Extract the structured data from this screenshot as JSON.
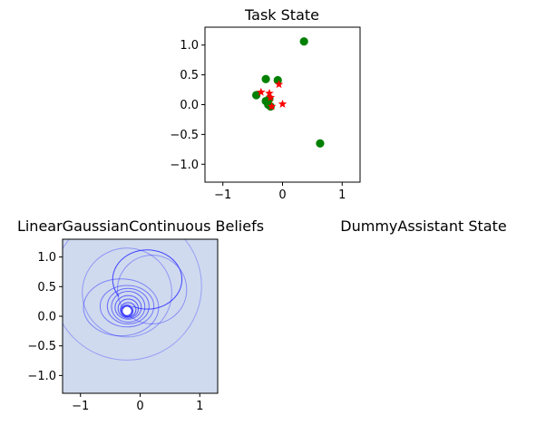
{
  "chart_data": [
    {
      "type": "scatter",
      "title": "Task State",
      "xlim": [
        -1.3,
        1.3
      ],
      "ylim": [
        -1.3,
        1.3
      ],
      "xticks": [
        -1,
        0,
        1
      ],
      "xtick_labels": [
        "−1",
        "0",
        "1"
      ],
      "yticks": [
        1.0,
        0.5,
        0.0,
        -0.5,
        -1.0
      ],
      "ytick_labels": [
        "1.0",
        "0.5",
        "0.0",
        "−0.5",
        "−1.0"
      ],
      "grid": false,
      "series": [
        {
          "marker": "circle",
          "color": "#008000",
          "points": [
            {
              "x": 0.36,
              "y": 1.06
            },
            {
              "x": -0.28,
              "y": 0.43
            },
            {
              "x": -0.08,
              "y": 0.41
            },
            {
              "x": -0.44,
              "y": 0.16
            },
            {
              "x": -0.28,
              "y": 0.06
            },
            {
              "x": -0.22,
              "y": 0.1
            },
            {
              "x": -0.24,
              "y": 0.0
            },
            {
              "x": -0.2,
              "y": -0.03
            },
            {
              "x": 0.63,
              "y": -0.65
            }
          ]
        },
        {
          "marker": "star",
          "color": "#ff0000",
          "points": [
            {
              "x": -0.36,
              "y": 0.21
            },
            {
              "x": -0.22,
              "y": 0.19
            },
            {
              "x": -0.06,
              "y": 0.34
            },
            {
              "x": -0.2,
              "y": 0.12
            },
            {
              "x": -0.18,
              "y": -0.03
            },
            {
              "x": 0.0,
              "y": 0.01
            }
          ]
        }
      ]
    },
    {
      "type": "scatter",
      "title": "LinearGaussianContinuous Beliefs",
      "xlim": [
        -1.3,
        1.3
      ],
      "ylim": [
        -1.3,
        1.3
      ],
      "xticks": [
        -1,
        0,
        1
      ],
      "xtick_labels": [
        "−1",
        "0",
        "1"
      ],
      "yticks": [
        1.0,
        0.5,
        0.0,
        -0.5,
        -1.0
      ],
      "ytick_labels": [
        "1.0",
        "0.5",
        "0.0",
        "−0.5",
        "−1.0"
      ],
      "background": "#cfdaee",
      "ellipse_color": "#3333ff",
      "ellipses": [
        {
          "cx": -0.22,
          "cy": 0.51,
          "rx": 1.25,
          "ry": 1.25
        },
        {
          "cx": -0.22,
          "cy": 0.4,
          "rx": 0.75,
          "ry": 0.75
        },
        {
          "cx": 0.2,
          "cy": 0.45,
          "rx": 0.58,
          "ry": 0.58
        },
        {
          "cx": -0.32,
          "cy": 0.15,
          "rx": 0.63,
          "ry": 0.48
        },
        {
          "cx": -0.22,
          "cy": 0.17,
          "rx": 0.45,
          "ry": 0.35
        },
        {
          "cx": -0.2,
          "cy": 0.17,
          "rx": 0.35,
          "ry": 0.3
        },
        {
          "cx": -0.2,
          "cy": 0.16,
          "rx": 0.28,
          "ry": 0.26
        },
        {
          "cx": -0.2,
          "cy": 0.15,
          "rx": 0.22,
          "ry": 0.2
        },
        {
          "cx": -0.2,
          "cy": 0.13,
          "rx": 0.17,
          "ry": 0.16
        },
        {
          "cx": -0.2,
          "cy": 0.11,
          "rx": 0.13,
          "ry": 0.12
        },
        {
          "cx": -0.22,
          "cy": 0.09,
          "rx": 0.1,
          "ry": 0.1
        }
      ],
      "open_arc": {
        "cx": 0.12,
        "cy": 0.62,
        "rx": 0.58,
        "ry": 0.5
      }
    },
    {
      "type": "scatter",
      "title": "DummyAssistant State",
      "empty": true
    }
  ]
}
